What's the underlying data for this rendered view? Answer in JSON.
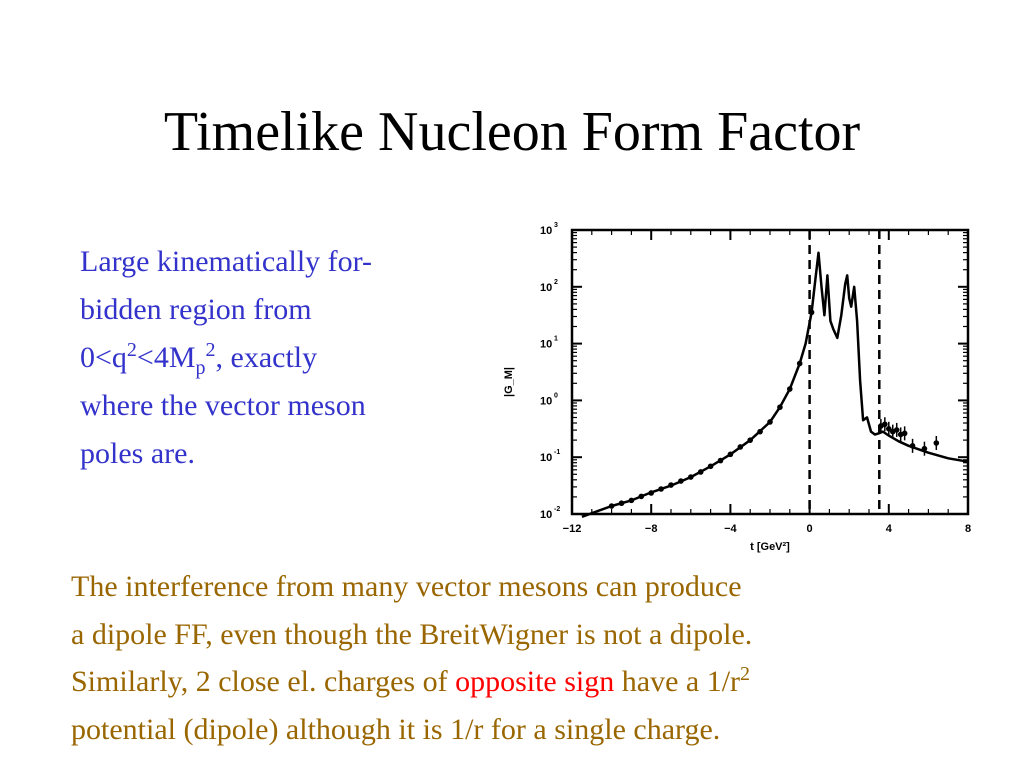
{
  "slide": {
    "title": "Timelike Nucleon Form Factor",
    "left_text": {
      "line1": "Large kinematically for-",
      "line2": "bidden region from",
      "l3_a": "0<q",
      "l3_sup1": "2",
      "l3_b": "<4M",
      "l3_sub": "p",
      "l3_sup2": "2",
      "l3_c": ", exactly",
      "line4": "where the vector meson",
      "line5": "poles are."
    },
    "bottom_text": {
      "line1": "The interference from many vector mesons can produce",
      "line2": "a dipole FF, even though the BreitWigner is not a dipole.",
      "l3_a": "Similarly, 2 close el. charges of ",
      "l3_red": "opposite sign",
      "l3_b": " have a 1/r",
      "l3_sup": "2",
      "line4": "potential (dipole) although it is 1/r for a single charge."
    },
    "colors": {
      "title": "#000000",
      "left_text": "#3333cc",
      "bottom_text": "#996600",
      "highlight": "#ff0000"
    }
  },
  "chart_data": {
    "type": "line",
    "title": "",
    "xlabel": "t [GeV²]",
    "ylabel": "|G_M|",
    "xlim": [
      -12,
      8
    ],
    "ylim_log10": [
      -2,
      3
    ],
    "log_y": true,
    "x_ticks": [
      "−12",
      "−8",
      "−4",
      "0",
      "4",
      "8"
    ],
    "x_tick_values": [
      -12,
      -8,
      -4,
      0,
      4,
      8
    ],
    "y_ticks": [
      {
        "base": "10",
        "exp": "-2"
      },
      {
        "base": "10",
        "exp": "-1"
      },
      {
        "base": "10",
        "exp": "0"
      },
      {
        "base": "10",
        "exp": "1"
      },
      {
        "base": "10",
        "exp": "2"
      },
      {
        "base": "10",
        "exp": "3"
      }
    ],
    "y_tick_exponents": [
      -2,
      -1,
      0,
      1,
      2,
      3
    ],
    "vertical_lines_x": [
      0,
      3.52
    ],
    "series": [
      {
        "kind": "curve",
        "points": [
          [
            -11.5,
            -2.05
          ],
          [
            -10,
            -1.86
          ],
          [
            -9,
            -1.76
          ],
          [
            -8,
            -1.62
          ],
          [
            -7,
            -1.5
          ],
          [
            -6,
            -1.35
          ],
          [
            -5,
            -1.16
          ],
          [
            -4,
            -0.95
          ],
          [
            -3,
            -0.7
          ],
          [
            -2,
            -0.38
          ],
          [
            -1.5,
            -0.12
          ],
          [
            -1,
            0.2
          ],
          [
            -0.5,
            0.65
          ],
          [
            -0.2,
            1.0
          ],
          [
            0.1,
            1.55
          ],
          [
            0.3,
            2.15
          ],
          [
            0.45,
            2.6
          ],
          [
            0.6,
            2.0
          ],
          [
            0.75,
            1.5
          ],
          [
            0.9,
            2.2
          ],
          [
            1.05,
            1.4
          ],
          [
            1.2,
            1.25
          ],
          [
            1.4,
            1.1
          ],
          [
            1.6,
            1.5
          ],
          [
            1.8,
            2.05
          ],
          [
            1.9,
            2.2
          ],
          [
            2.0,
            1.8
          ],
          [
            2.1,
            1.65
          ],
          [
            2.25,
            2.0
          ],
          [
            2.4,
            1.4
          ],
          [
            2.55,
            0.35
          ],
          [
            2.7,
            -0.35
          ],
          [
            2.9,
            -0.3
          ],
          [
            3.1,
            -0.55
          ],
          [
            3.3,
            -0.6
          ],
          [
            3.5,
            -0.58
          ],
          [
            3.7,
            -0.55
          ],
          [
            4.0,
            -0.62
          ],
          [
            4.5,
            -0.72
          ],
          [
            5.0,
            -0.8
          ],
          [
            6.0,
            -0.92
          ],
          [
            7.0,
            -1.02
          ],
          [
            8.0,
            -1.08
          ]
        ]
      },
      {
        "kind": "points",
        "points": [
          [
            -10,
            -1.86
          ],
          [
            -9.5,
            -1.81
          ],
          [
            -9,
            -1.76
          ],
          [
            -8.5,
            -1.69
          ],
          [
            -8,
            -1.63
          ],
          [
            -7.5,
            -1.56
          ],
          [
            -7,
            -1.49
          ],
          [
            -6.5,
            -1.42
          ],
          [
            -6,
            -1.35
          ],
          [
            -5.5,
            -1.26
          ],
          [
            -5,
            -1.16
          ],
          [
            -4.5,
            -1.06
          ],
          [
            -4,
            -0.95
          ],
          [
            -3.5,
            -0.82
          ],
          [
            -3,
            -0.7
          ],
          [
            -2.5,
            -0.55
          ],
          [
            -2,
            -0.38
          ],
          [
            -1.5,
            -0.12
          ],
          [
            -1,
            0.2
          ],
          [
            -0.5,
            0.65
          ],
          [
            0.1,
            1.55
          ],
          [
            3.6,
            -0.45
          ],
          [
            3.8,
            -0.42
          ],
          [
            4.0,
            -0.5
          ],
          [
            4.2,
            -0.55
          ],
          [
            4.4,
            -0.52
          ],
          [
            4.6,
            -0.6
          ],
          [
            4.8,
            -0.58
          ],
          [
            5.2,
            -0.8
          ],
          [
            5.8,
            -0.85
          ],
          [
            6.4,
            -0.75
          ]
        ]
      }
    ]
  }
}
